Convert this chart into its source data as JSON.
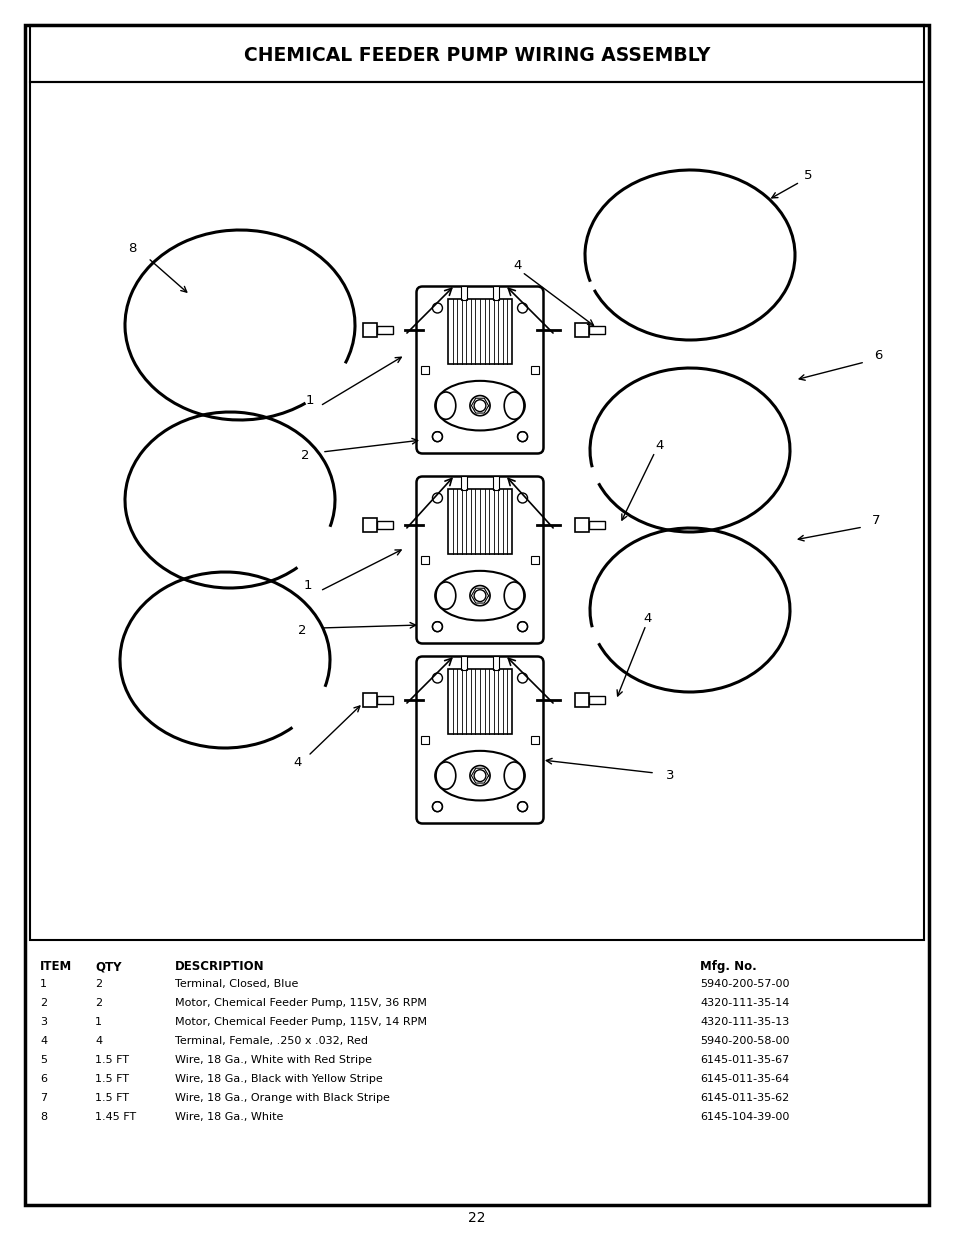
{
  "title": "CHEMICAL FEEDER PUMP WIRING ASSEMBLY",
  "page_number": "22",
  "table_header": [
    "ITEM",
    "QTY",
    "DESCRIPTION",
    "Mfg. No."
  ],
  "table_rows": [
    [
      "1",
      "2",
      "Terminal, Closed, Blue",
      "5940-200-57-00"
    ],
    [
      "2",
      "2",
      "Motor, Chemical Feeder Pump, 115V, 36 RPM",
      "4320-111-35-14"
    ],
    [
      "3",
      "1",
      "Motor, Chemical Feeder Pump, 115V, 14 RPM",
      "4320-111-35-13"
    ],
    [
      "4",
      "4",
      "Terminal, Female, .250 x .032, Red",
      "5940-200-58-00"
    ],
    [
      "5",
      "1.5 FT",
      "Wire, 18 Ga., White with Red Stripe",
      "6145-011-35-67"
    ],
    [
      "6",
      "1.5 FT",
      "Wire, 18 Ga., Black with Yellow Stripe",
      "6145-011-35-64"
    ],
    [
      "7",
      "1.5 FT",
      "Wire, 18 Ga., Orange with Black Stripe",
      "6145-011-35-62"
    ],
    [
      "8",
      "1.45 FT",
      "Wire, 18 Ga., White",
      "6145-104-39-00"
    ]
  ],
  "bg_color": "#ffffff",
  "border_color": "#000000"
}
